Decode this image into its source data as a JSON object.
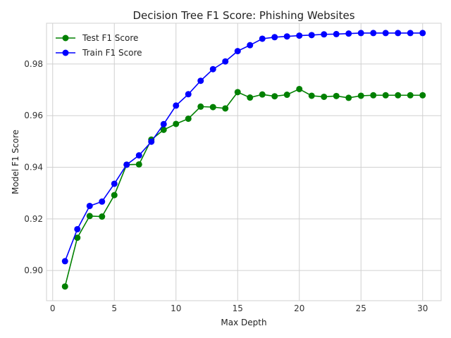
{
  "chart_data": {
    "type": "line",
    "title": "Decision Tree F1 Score: Phishing Websites",
    "xlabel": "Max Depth",
    "ylabel": "Model F1 Score",
    "xlim": [
      -0.5,
      31.5
    ],
    "ylim": [
      0.8883,
      0.9958
    ],
    "xticks": [
      0,
      5,
      10,
      15,
      20,
      25,
      30
    ],
    "yticks": [
      0.9,
      0.92,
      0.94,
      0.96,
      0.98
    ],
    "ytick_labels": [
      "0.90",
      "0.92",
      "0.94",
      "0.96",
      "0.98"
    ],
    "grid": true,
    "legend_position": "top-left",
    "x": [
      1,
      2,
      3,
      4,
      5,
      6,
      7,
      8,
      9,
      10,
      11,
      12,
      13,
      14,
      15,
      16,
      17,
      18,
      19,
      20,
      21,
      22,
      23,
      24,
      25,
      26,
      27,
      28,
      29,
      30
    ],
    "series": [
      {
        "name": "Test F1 Score",
        "color": "#008000",
        "values": [
          0.8938,
          0.9127,
          0.9211,
          0.9209,
          0.9292,
          0.941,
          0.9411,
          0.9507,
          0.9545,
          0.9568,
          0.9588,
          0.9635,
          0.9633,
          0.9628,
          0.9691,
          0.967,
          0.9682,
          0.9675,
          0.9681,
          0.9703,
          0.9677,
          0.9673,
          0.9676,
          0.9669,
          0.9677,
          0.9679,
          0.9679,
          0.9679,
          0.9679,
          0.9679
        ]
      },
      {
        "name": "Train F1 Score",
        "color": "#0000ff",
        "values": [
          0.9036,
          0.916,
          0.925,
          0.9267,
          0.9336,
          0.941,
          0.9446,
          0.9499,
          0.9567,
          0.9639,
          0.9683,
          0.9735,
          0.978,
          0.981,
          0.985,
          0.9873,
          0.9898,
          0.9904,
          0.9907,
          0.991,
          0.9912,
          0.9915,
          0.9916,
          0.9918,
          0.992,
          0.992,
          0.992,
          0.992,
          0.992,
          0.992
        ]
      }
    ]
  }
}
